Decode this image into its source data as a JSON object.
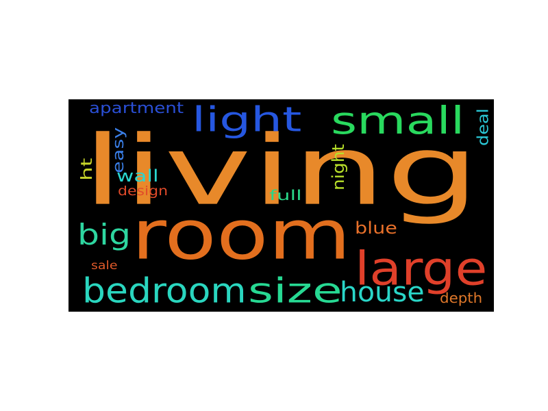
{
  "words": [
    {
      "key": "living",
      "text": "living",
      "color": "#e8892a",
      "orientation": "horizontal"
    },
    {
      "key": "room",
      "text": "room",
      "color": "#e36f1e",
      "orientation": "horizontal"
    },
    {
      "key": "light",
      "text": "light",
      "color": "#2657e0",
      "orientation": "horizontal"
    },
    {
      "key": "small",
      "text": "small",
      "color": "#29d95e",
      "orientation": "horizontal"
    },
    {
      "key": "bedroom",
      "text": "bedroom",
      "color": "#2ad6bf",
      "orientation": "horizontal"
    },
    {
      "key": "size",
      "text": "size",
      "color": "#27d993",
      "orientation": "horizontal"
    },
    {
      "key": "large",
      "text": "large",
      "color": "#e0402a",
      "orientation": "horizontal"
    },
    {
      "key": "house",
      "text": "house",
      "color": "#2ad6c8",
      "orientation": "horizontal"
    },
    {
      "key": "big",
      "text": "big",
      "color": "#2ed6a0",
      "orientation": "horizontal"
    },
    {
      "key": "apartment",
      "text": "apartment",
      "color": "#2a4fd6",
      "orientation": "horizontal"
    },
    {
      "key": "easy",
      "text": "easy",
      "color": "#3a7fe8",
      "orientation": "vertical"
    },
    {
      "key": "ht",
      "text": "ht",
      "color": "#c8d62a",
      "orientation": "vertical"
    },
    {
      "key": "wall",
      "text": "wall",
      "color": "#2ad6d0",
      "orientation": "horizontal"
    },
    {
      "key": "design",
      "text": "design",
      "color": "#e04a2a",
      "orientation": "horizontal"
    },
    {
      "key": "night",
      "text": "night",
      "color": "#b8e02a",
      "orientation": "vertical"
    },
    {
      "key": "full",
      "text": "full",
      "color": "#2ad688",
      "orientation": "horizontal"
    },
    {
      "key": "blue",
      "text": "blue",
      "color": "#e8702a",
      "orientation": "horizontal"
    },
    {
      "key": "deal",
      "text": "deal",
      "color": "#2ac8d6",
      "orientation": "vertical"
    },
    {
      "key": "sale",
      "text": "sale",
      "color": "#e05a2a",
      "orientation": "horizontal"
    },
    {
      "key": "depth",
      "text": "depth",
      "color": "#e0782a",
      "orientation": "horizontal"
    }
  ]
}
